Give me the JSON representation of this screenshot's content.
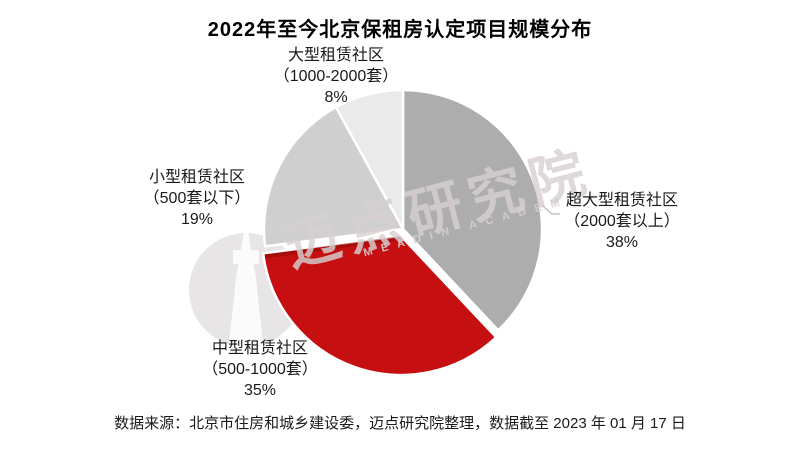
{
  "title": "2022年至今北京保租房认定项目规模分布",
  "watermark": {
    "cn_text": "迈点研究院",
    "en_text": "MEADIN ACADEMY"
  },
  "footer": {
    "source_note": "数据来源：北京市住房和城乡建设委，迈点研究院整理，数据截至 2023 年 01 月 17 日"
  },
  "chart_data": {
    "type": "pie",
    "title": "2022年至今北京保租房认定项目规模分布",
    "direction": "clockwise",
    "start_angle_deg": 0,
    "legend_position": "none",
    "background": "#ffffff",
    "colors": {
      "accent_red": "#c50f11",
      "gray_dark": "#adadad",
      "gray_mid": "#cfcfcf",
      "gray_light": "#eaeaea"
    },
    "segments": [
      {
        "label": "超大型租赁社区",
        "range": "（2000套以上）",
        "pct_label": "38%",
        "value": 38,
        "color": "#adadad"
      },
      {
        "label": "中型租赁社区",
        "range": "（500-1000套）",
        "pct_label": "35%",
        "value": 35,
        "color": "#c50f11"
      },
      {
        "label": "小型租赁社区",
        "range": "（500套以下）",
        "pct_label": "19%",
        "value": 19,
        "color": "#cfcfcf"
      },
      {
        "label": "大型租赁社区",
        "range": "（1000-2000套）",
        "pct_label": "8%",
        "value": 8,
        "color": "#eaeaea"
      }
    ],
    "source_note": "数据来源：北京市住房和城乡建设委，迈点研究院整理，数据截至 2023 年 01 月 17 日"
  }
}
